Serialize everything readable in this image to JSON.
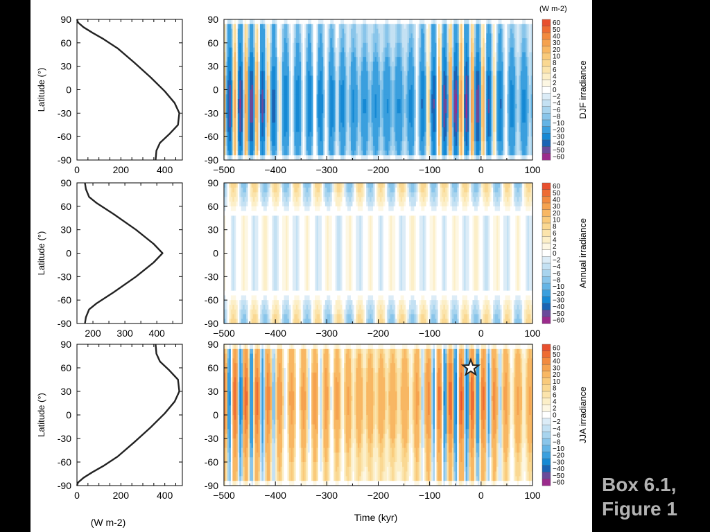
{
  "caption": {
    "line1": "Box 6.1,",
    "line2": "Figure 1"
  },
  "units": {
    "profile_x": "(W m-2)",
    "colorbar": "(W m-2)"
  },
  "time_axis_label": "Time (kyr)",
  "latitude_label": "Latitude (°)",
  "latitude_ticks": [
    90,
    60,
    30,
    0,
    -30,
    -60,
    -90
  ],
  "time_ticks": [
    -500,
    -400,
    -300,
    -200,
    -100,
    0,
    100
  ],
  "colorbar_levels": [
    "60",
    "50",
    "40",
    "30",
    "20",
    "10",
    "8",
    "6",
    "4",
    "2",
    "0",
    "−2",
    "−4",
    "−6",
    "−8",
    "−10",
    "−20",
    "−30",
    "−40",
    "−50",
    "−60"
  ],
  "colorbar_colors": [
    "#e8502e",
    "#ee6c33",
    "#f28a3f",
    "#f5a24f",
    "#f8b763",
    "#f9ca7b",
    "#fad892",
    "#fbe4ac",
    "#fcefc8",
    "#fdf7e3",
    "#ffffff",
    "#dcecf7",
    "#c4e1f3",
    "#a8d4ee",
    "#89c5ea",
    "#64b4e5",
    "#3a9fde",
    "#1689d4",
    "#1a64b4",
    "#6a4a9a",
    "#9b2b8c"
  ],
  "chart_data": [
    {
      "type": "line",
      "panel": "DJF profile",
      "xlabel": "",
      "ylabel": "Latitude (°)",
      "xlim": [
        0,
        480
      ],
      "ylim": [
        -90,
        90
      ],
      "xticks": [
        0,
        200,
        400
      ],
      "series": [
        {
          "points": [
            [
              0,
              90
            ],
            [
              5,
              86
            ],
            [
              30,
              80
            ],
            [
              70,
              73
            ],
            [
              120,
              65
            ],
            [
              185,
              53
            ],
            [
              260,
              35
            ],
            [
              335,
              16
            ],
            [
              400,
              -2
            ],
            [
              445,
              -17
            ],
            [
              466,
              -30
            ],
            [
              460,
              -45
            ],
            [
              420,
              -57
            ],
            [
              378,
              -68
            ],
            [
              362,
              -78
            ],
            [
              358,
              -90
            ]
          ]
        }
      ]
    },
    {
      "type": "heatmap",
      "panel": "DJF irradiance",
      "title": "DJF irradiance",
      "xlabel": "",
      "ylabel": "",
      "xlim": [
        -500,
        100
      ],
      "ylim": [
        -90,
        90
      ],
      "period_kyr": [
        22,
        20
      ],
      "anomaly_amplitude": 40,
      "sign_flip_latitude": null
    },
    {
      "type": "line",
      "panel": "Annual profile",
      "xlabel": "",
      "ylabel": "Latitude (°)",
      "xlim": [
        150,
        480
      ],
      "ylim": [
        -90,
        90
      ],
      "xticks": [
        200,
        300,
        400
      ],
      "series": [
        {
          "points": [
            [
              175,
              90
            ],
            [
              178,
              82
            ],
            [
              188,
              72
            ],
            [
              212,
              64
            ],
            [
              265,
              50
            ],
            [
              335,
              30
            ],
            [
              390,
              12
            ],
            [
              418,
              0
            ],
            [
              390,
              -12
            ],
            [
              335,
              -30
            ],
            [
              265,
              -50
            ],
            [
              212,
              -64
            ],
            [
              188,
              -72
            ],
            [
              178,
              -82
            ],
            [
              175,
              -90
            ]
          ]
        }
      ]
    },
    {
      "type": "heatmap",
      "panel": "Annual irradiance",
      "title": "Annual  irradiance",
      "xlabel": "",
      "ylabel": "",
      "xlim": [
        -500,
        100
      ],
      "ylim": [
        -90,
        90
      ],
      "period_kyr": [
        41
      ],
      "anomaly_amplitude": 6,
      "sign_flip_latitude": 50
    },
    {
      "type": "line",
      "panel": "JJA profile",
      "xlabel": "(W m-2)",
      "ylabel": "Latitude (°)",
      "xlim": [
        0,
        480
      ],
      "ylim": [
        -90,
        90
      ],
      "xticks": [
        0,
        200,
        400
      ],
      "series": [
        {
          "points": [
            [
              358,
              90
            ],
            [
              362,
              78
            ],
            [
              378,
              68
            ],
            [
              420,
              57
            ],
            [
              460,
              45
            ],
            [
              466,
              30
            ],
            [
              445,
              17
            ],
            [
              400,
              2
            ],
            [
              335,
              -16
            ],
            [
              260,
              -35
            ],
            [
              185,
              -53
            ],
            [
              120,
              -65
            ],
            [
              70,
              -73
            ],
            [
              30,
              -80
            ],
            [
              5,
              -86
            ],
            [
              0,
              -90
            ]
          ]
        }
      ]
    },
    {
      "type": "heatmap",
      "panel": "JJA irradiance",
      "title": "JJA irradiance",
      "xlabel": "Time (kyr)",
      "ylabel": "",
      "xlim": [
        -500,
        100
      ],
      "ylim": [
        -90,
        90
      ],
      "period_kyr": [
        22,
        20
      ],
      "anomaly_amplitude": 40,
      "sign_flip_latitude": null,
      "marker": {
        "symbol": "star",
        "x": -20,
        "y": 60
      }
    }
  ]
}
